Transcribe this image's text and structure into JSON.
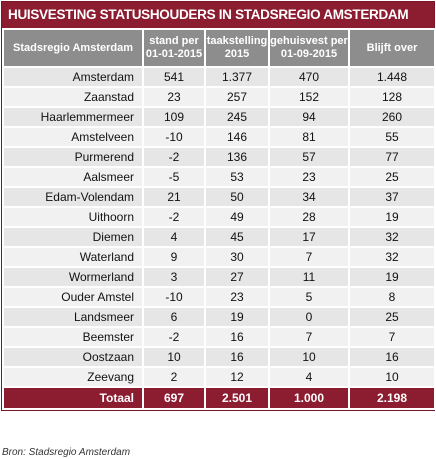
{
  "header": {
    "title": "HUISVESTING STATUSHOUDERS IN STADSREGIO AMSTERDAM"
  },
  "table": {
    "columns": [
      "Stadsregio Amsterdam",
      "stand per 01-01-2015",
      "taakstelling 2015",
      "gehuisvest per 01-09-2015",
      "Blijft over"
    ],
    "rows": [
      [
        "Amsterdam",
        "541",
        "1.377",
        "470",
        "1.448"
      ],
      [
        "Zaanstad",
        "23",
        "257",
        "152",
        "128"
      ],
      [
        "Haarlemmermeer",
        "109",
        "245",
        "94",
        "260"
      ],
      [
        "Amstelveen",
        "-10",
        "146",
        "81",
        "55"
      ],
      [
        "Purmerend",
        "-2",
        "136",
        "57",
        "77"
      ],
      [
        "Aalsmeer",
        "-5",
        "53",
        "23",
        "25"
      ],
      [
        "Edam-Volendam",
        "21",
        "50",
        "34",
        "37"
      ],
      [
        "Uithoorn",
        "-2",
        "49",
        "28",
        "19"
      ],
      [
        "Diemen",
        "4",
        "45",
        "17",
        "32"
      ],
      [
        "Waterland",
        "9",
        "30",
        "7",
        "32"
      ],
      [
        "Wormerland",
        "3",
        "27",
        "11",
        "19"
      ],
      [
        "Ouder Amstel",
        "-10",
        "23",
        "5",
        "8"
      ],
      [
        "Landsmeer",
        "6",
        "19",
        "0",
        "25"
      ],
      [
        "Beemster",
        "-2",
        "16",
        "7",
        "7"
      ],
      [
        "Oostzaan",
        "10",
        "16",
        "10",
        "16"
      ],
      [
        "Zeevang",
        "2",
        "12",
        "4",
        "10"
      ]
    ],
    "total": [
      "Totaal",
      "697",
      "2.501",
      "1.000",
      "2.198"
    ]
  },
  "source": "Bron: Stadsregio Amsterdam"
}
